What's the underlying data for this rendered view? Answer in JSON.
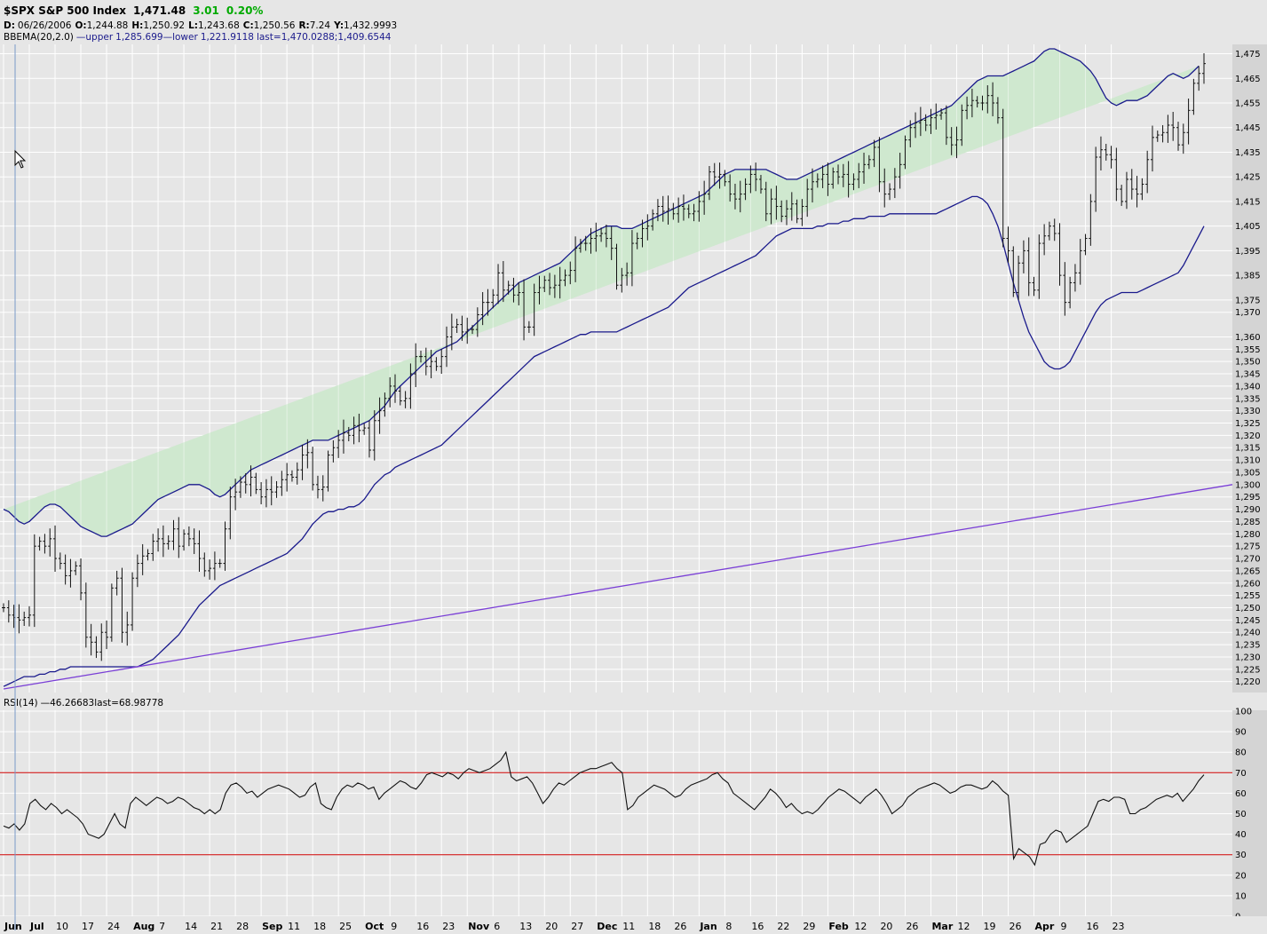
{
  "header": {
    "symbol": "$SPX S&P 500 Index",
    "last": "1,471.48",
    "change": "3.01",
    "change_pct": "0.20%",
    "change_color": "#00aa00",
    "ohlc": {
      "d_label": "D:",
      "date": "06/26/2006",
      "o_label": "O:",
      "open": "1,244.88",
      "h_label": "H:",
      "high": "1,250.92",
      "l_label": "L:",
      "low": "1,243.68",
      "c_label": "C:",
      "close": "1,250.56",
      "r_label": "R:",
      "range": "7.24",
      "y_label": "Y:",
      "y": "1,432.9993"
    },
    "bb": {
      "name": "BBEMA(20,2.0)",
      "upper_label": "—upper",
      "upper": "1,285.699",
      "lower_label": "—lower",
      "lower": "1,221.9118",
      "last_label": "last=",
      "last_vals": "1,470.0288;1,409.6544"
    }
  },
  "rsi_legend": {
    "name": "RSI(14)",
    "value": "—46.26683",
    "last": "last=68.98778"
  },
  "colors": {
    "band_fill": "#cfe8cf",
    "band_line": "#1a1a8c",
    "trend_line": "#7a3fd6",
    "rsi_ref": "#cc0000",
    "cursor_line": "#7a9ac8",
    "grid": "#ffffff",
    "bg": "#e6e6e6"
  },
  "chart_data": [
    {
      "type": "ohlc",
      "series": [
        {
          "name": "$SPX S&P 500 Index"
        },
        {
          "name": "BBEMA(20,2.0) upper"
        },
        {
          "name": "BBEMA(20,2.0) lower"
        }
      ],
      "ylim": [
        1217,
        1477
      ],
      "yticks": [
        1220,
        1225,
        1230,
        1235,
        1240,
        1245,
        1250,
        1255,
        1260,
        1265,
        1270,
        1275,
        1280,
        1285,
        1290,
        1295,
        1300,
        1305,
        1310,
        1315,
        1320,
        1325,
        1330,
        1335,
        1340,
        1345,
        1350,
        1355,
        1360,
        1370,
        1375,
        1385,
        1395,
        1405,
        1415,
        1425,
        1435,
        1445,
        1455,
        1465,
        1475
      ],
      "ytick_labels": [
        "1,220",
        "1,225",
        "1,230",
        "1,235",
        "1,240",
        "1,245",
        "1,250",
        "1,255",
        "1,260",
        "1,265",
        "1,270",
        "1,275",
        "1,280",
        "1,285",
        "1,290",
        "1,295",
        "1,300",
        "1,305",
        "1,310",
        "1,315",
        "1,320",
        "1,325",
        "1,330",
        "1,335",
        "1,340",
        "1,345",
        "1,350",
        "1,355",
        "1,360",
        "1,370",
        "1,375",
        "1,385",
        "1,395",
        "1,405",
        "1,415",
        "1,425",
        "1,435",
        "1,445",
        "1,455",
        "1,465",
        "1,475"
      ],
      "closes": [
        1250,
        1247,
        1246,
        1245,
        1246,
        1247,
        1275,
        1277,
        1275,
        1278,
        1270,
        1268,
        1263,
        1265,
        1267,
        1256,
        1238,
        1236,
        1232,
        1240,
        1238,
        1258,
        1262,
        1240,
        1243,
        1262,
        1268,
        1271,
        1272,
        1277,
        1278,
        1276,
        1277,
        1282,
        1275,
        1280,
        1278,
        1276,
        1270,
        1265,
        1266,
        1268,
        1268,
        1282,
        1295,
        1297,
        1301,
        1300,
        1303,
        1298,
        1295,
        1298,
        1297,
        1299,
        1302,
        1304,
        1303,
        1306,
        1312,
        1313,
        1300,
        1298,
        1299,
        1312,
        1315,
        1318,
        1321,
        1320,
        1324,
        1322,
        1323,
        1314,
        1326,
        1330,
        1335,
        1340,
        1338,
        1334,
        1335,
        1345,
        1352,
        1352,
        1348,
        1350,
        1348,
        1352,
        1360,
        1364,
        1365,
        1362,
        1363,
        1363,
        1369,
        1374,
        1374,
        1377,
        1386,
        1379,
        1381,
        1377,
        1378,
        1364,
        1364,
        1378,
        1380,
        1383,
        1380,
        1381,
        1383,
        1385,
        1387,
        1396,
        1398,
        1398,
        1400,
        1401,
        1402,
        1400,
        1396,
        1381,
        1385,
        1386,
        1398,
        1400,
        1404,
        1405,
        1410,
        1413,
        1411,
        1412,
        1410,
        1413,
        1412,
        1410,
        1411,
        1415,
        1418,
        1427,
        1425,
        1426,
        1423,
        1418,
        1416,
        1418,
        1422,
        1426,
        1424,
        1420,
        1410,
        1416,
        1413,
        1409,
        1412,
        1414,
        1408,
        1413,
        1420,
        1423,
        1424,
        1426,
        1422,
        1427,
        1425,
        1426,
        1422,
        1424,
        1427,
        1430,
        1432,
        1437,
        1423,
        1418,
        1420,
        1425,
        1430,
        1440,
        1445,
        1447,
        1448,
        1446,
        1449,
        1450,
        1451,
        1441,
        1438,
        1440,
        1452,
        1454,
        1456,
        1455,
        1455,
        1458,
        1455,
        1449,
        1400,
        1395,
        1378,
        1390,
        1395,
        1382,
        1379,
        1398,
        1401,
        1405,
        1402,
        1385,
        1374,
        1382,
        1386,
        1395,
        1400,
        1415,
        1433,
        1436,
        1434,
        1432,
        1420,
        1415,
        1424,
        1420,
        1418,
        1422,
        1432,
        1441,
        1442,
        1443,
        1446,
        1445,
        1438,
        1443,
        1452,
        1463,
        1467,
        1471
      ],
      "upper_band": [
        1290,
        1289,
        1287,
        1285,
        1284,
        1285,
        1287,
        1289,
        1291,
        1292,
        1292,
        1291,
        1289,
        1287,
        1285,
        1283,
        1282,
        1281,
        1280,
        1279,
        1279,
        1280,
        1281,
        1282,
        1283,
        1284,
        1286,
        1288,
        1290,
        1292,
        1294,
        1295,
        1296,
        1297,
        1298,
        1299,
        1300,
        1300,
        1300,
        1299,
        1298,
        1296,
        1295,
        1296,
        1298,
        1300,
        1302,
        1304,
        1306,
        1307,
        1308,
        1309,
        1310,
        1311,
        1312,
        1313,
        1314,
        1315,
        1316,
        1317,
        1318,
        1318,
        1318,
        1318,
        1319,
        1320,
        1321,
        1322,
        1323,
        1324,
        1325,
        1326,
        1328,
        1330,
        1332,
        1335,
        1338,
        1340,
        1342,
        1344,
        1346,
        1348,
        1350,
        1352,
        1354,
        1355,
        1356,
        1357,
        1358,
        1360,
        1362,
        1364,
        1366,
        1368,
        1370,
        1372,
        1374,
        1376,
        1378,
        1380,
        1382,
        1383,
        1384,
        1385,
        1386,
        1387,
        1388,
        1389,
        1390,
        1392,
        1394,
        1396,
        1398,
        1400,
        1402,
        1403,
        1404,
        1405,
        1405,
        1405,
        1404,
        1404,
        1404,
        1405,
        1406,
        1407,
        1408,
        1409,
        1410,
        1411,
        1412,
        1413,
        1414,
        1415,
        1416,
        1417,
        1418,
        1420,
        1422,
        1424,
        1426,
        1427,
        1428,
        1428,
        1428,
        1428,
        1428,
        1428,
        1428,
        1427,
        1426,
        1425,
        1424,
        1424,
        1424,
        1425,
        1426,
        1427,
        1428,
        1429,
        1430,
        1431,
        1432,
        1433,
        1434,
        1435,
        1436,
        1437,
        1438,
        1439,
        1440,
        1441,
        1442,
        1443,
        1444,
        1445,
        1446,
        1447,
        1448,
        1449,
        1450,
        1451,
        1452,
        1453,
        1454,
        1456,
        1458,
        1460,
        1462,
        1464,
        1465,
        1466,
        1466,
        1466,
        1466,
        1467,
        1468,
        1469,
        1470,
        1471,
        1472,
        1474,
        1476,
        1477,
        1477,
        1476,
        1475,
        1474,
        1473,
        1472,
        1470,
        1468,
        1465,
        1461,
        1457,
        1455,
        1454,
        1455,
        1456,
        1456,
        1456,
        1457,
        1458,
        1460,
        1462,
        1464,
        1466,
        1467,
        1466,
        1465,
        1466,
        1468,
        1470
      ],
      "lower_band": [
        1218,
        1219,
        1220,
        1221,
        1222,
        1222,
        1222,
        1223,
        1223,
        1224,
        1224,
        1225,
        1225,
        1226,
        1226,
        1226,
        1226,
        1226,
        1226,
        1226,
        1226,
        1226,
        1226,
        1226,
        1226,
        1226,
        1226,
        1227,
        1228,
        1229,
        1231,
        1233,
        1235,
        1237,
        1239,
        1242,
        1245,
        1248,
        1251,
        1253,
        1255,
        1257,
        1259,
        1260,
        1261,
        1262,
        1263,
        1264,
        1265,
        1266,
        1267,
        1268,
        1269,
        1270,
        1271,
        1272,
        1274,
        1276,
        1278,
        1281,
        1284,
        1286,
        1288,
        1289,
        1289,
        1290,
        1290,
        1291,
        1291,
        1292,
        1294,
        1297,
        1300,
        1302,
        1304,
        1305,
        1307,
        1308,
        1309,
        1310,
        1311,
        1312,
        1313,
        1314,
        1315,
        1316,
        1318,
        1320,
        1322,
        1324,
        1326,
        1328,
        1330,
        1332,
        1334,
        1336,
        1338,
        1340,
        1342,
        1344,
        1346,
        1348,
        1350,
        1352,
        1353,
        1354,
        1355,
        1356,
        1357,
        1358,
        1359,
        1360,
        1361,
        1361,
        1362,
        1362,
        1362,
        1362,
        1362,
        1362,
        1363,
        1364,
        1365,
        1366,
        1367,
        1368,
        1369,
        1370,
        1371,
        1372,
        1374,
        1376,
        1378,
        1380,
        1381,
        1382,
        1383,
        1384,
        1385,
        1386,
        1387,
        1388,
        1389,
        1390,
        1391,
        1392,
        1393,
        1395,
        1397,
        1399,
        1401,
        1402,
        1403,
        1404,
        1404,
        1404,
        1404,
        1404,
        1405,
        1405,
        1406,
        1406,
        1406,
        1407,
        1407,
        1408,
        1408,
        1408,
        1409,
        1409,
        1409,
        1409,
        1410,
        1410,
        1410,
        1410,
        1410,
        1410,
        1410,
        1410,
        1410,
        1410,
        1411,
        1412,
        1413,
        1414,
        1415,
        1416,
        1417,
        1417,
        1416,
        1414,
        1410,
        1405,
        1398,
        1390,
        1382,
        1375,
        1368,
        1362,
        1358,
        1354,
        1350,
        1348,
        1347,
        1347,
        1348,
        1350,
        1354,
        1358,
        1362,
        1366,
        1370,
        1373,
        1375,
        1376,
        1377,
        1378,
        1378,
        1378,
        1378,
        1379,
        1380,
        1381,
        1382,
        1383,
        1384,
        1385,
        1386,
        1389,
        1393,
        1397,
        1401,
        1405,
        1409
      ],
      "trend_line": {
        "x_start": 0,
        "y_start": 1217,
        "x_end": 227,
        "y_end": 1296
      },
      "xtick_labels": [
        "Jun",
        "Jul",
        "10",
        "17",
        "24",
        "Aug",
        "7",
        "14",
        "21",
        "28",
        "Sep",
        "11",
        "18",
        "25",
        "Oct",
        "9",
        "16",
        "23",
        "Nov",
        "6",
        "13",
        "20",
        "27",
        "Dec",
        "11",
        "18",
        "26",
        "Jan",
        "8",
        "16",
        "22",
        "29",
        "Feb",
        "12",
        "20",
        "26",
        "Mar",
        "12",
        "19",
        "26",
        "Apr",
        "9",
        "16",
        "23"
      ],
      "xtick_bold": [
        "Jun",
        "Jul",
        "Aug",
        "Sep",
        "Oct",
        "Nov",
        "Dec",
        "Jan",
        "Feb",
        "Mar",
        "Apr"
      ],
      "xtick_index": [
        0,
        5,
        10,
        15,
        20,
        25,
        30,
        35,
        40,
        45,
        50,
        55,
        60,
        65,
        70,
        75,
        80,
        85,
        90,
        95,
        100,
        105,
        110,
        115,
        120,
        125,
        130,
        135,
        140,
        145,
        150,
        155,
        160,
        165,
        170,
        175,
        180,
        185,
        190,
        195,
        200,
        205,
        210,
        215
      ],
      "grid": true
    },
    {
      "type": "line",
      "series": [
        {
          "name": "RSI(14)"
        }
      ],
      "ylim": [
        0,
        100
      ],
      "yticks": [
        0,
        10,
        20,
        30,
        40,
        50,
        60,
        70,
        80,
        90,
        100
      ],
      "ref_lines": [
        30,
        70
      ],
      "values": [
        44,
        43,
        45,
        42,
        45,
        55,
        57,
        54,
        52,
        55,
        53,
        50,
        52,
        50,
        48,
        45,
        40,
        39,
        38,
        40,
        45,
        50,
        45,
        43,
        55,
        58,
        56,
        54,
        56,
        58,
        57,
        55,
        56,
        58,
        57,
        55,
        53,
        52,
        50,
        52,
        50,
        52,
        60,
        64,
        65,
        63,
        60,
        61,
        58,
        60,
        62,
        63,
        64,
        63,
        62,
        60,
        58,
        59,
        63,
        65,
        55,
        53,
        52,
        58,
        62,
        64,
        63,
        65,
        64,
        62,
        63,
        57,
        60,
        62,
        64,
        66,
        65,
        63,
        62,
        65,
        69,
        70,
        69,
        68,
        70,
        69,
        67,
        70,
        72,
        71,
        70,
        71,
        72,
        74,
        76,
        80,
        68,
        66,
        67,
        68,
        65,
        60,
        55,
        58,
        62,
        65,
        64,
        66,
        68,
        70,
        71,
        72,
        72,
        73,
        74,
        75,
        72,
        70,
        52,
        54,
        58,
        60,
        62,
        64,
        63,
        62,
        60,
        58,
        59,
        62,
        64,
        65,
        66,
        67,
        69,
        70,
        67,
        65,
        60,
        58,
        56,
        54,
        52,
        55,
        58,
        62,
        60,
        57,
        53,
        55,
        52,
        50,
        51,
        50,
        52,
        55,
        58,
        60,
        62,
        61,
        59,
        57,
        55,
        58,
        60,
        62,
        59,
        55,
        50,
        52,
        54,
        58,
        60,
        62,
        63,
        64,
        65,
        64,
        62,
        60,
        61,
        63,
        64,
        64,
        63,
        62,
        63,
        66,
        64,
        61,
        59,
        28,
        33,
        31,
        29,
        25,
        35,
        36,
        40,
        42,
        41,
        36,
        38,
        40,
        42,
        44,
        50,
        56,
        57,
        56,
        58,
        58,
        57,
        50,
        50,
        52,
        53,
        55,
        57,
        58,
        59,
        58,
        60,
        56,
        59,
        62,
        66,
        69
      ]
    }
  ]
}
